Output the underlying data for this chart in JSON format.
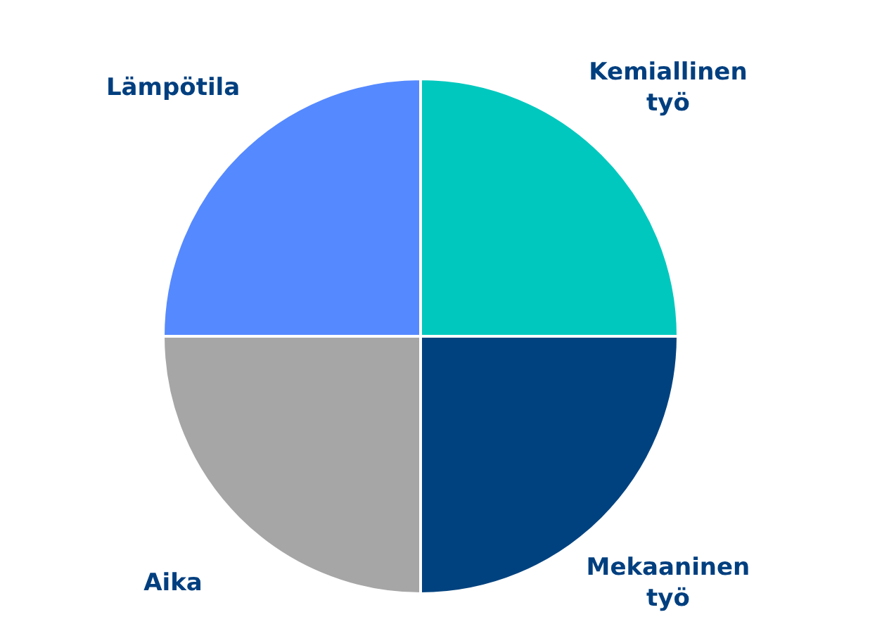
{
  "chart_data": {
    "type": "pie",
    "categories": [
      "Kemiallinen työ",
      "Mekaaninen työ",
      "Aika",
      "Lämpötila"
    ],
    "values": [
      25,
      25,
      25,
      25
    ],
    "colors": [
      "#00c8be",
      "#00427f",
      "#a6a6a6",
      "#5589ff"
    ],
    "legend": false
  }
}
